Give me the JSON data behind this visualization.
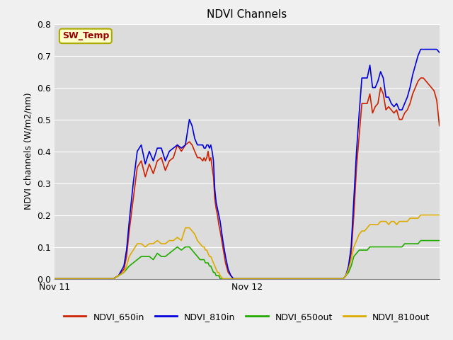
{
  "title": "NDVI Channels",
  "ylabel": "NDVI channels (W/m2/nm)",
  "ylim": [
    0.0,
    0.8
  ],
  "yticks": [
    0.0,
    0.1,
    0.2,
    0.3,
    0.4,
    0.5,
    0.6,
    0.7,
    0.8
  ],
  "bg_color": "#dcdcdc",
  "fig_bg_color": "#f0f0f0",
  "legend_entries": [
    "NDVI_650in",
    "NDVI_810in",
    "NDVI_650out",
    "NDVI_810out"
  ],
  "line_colors": [
    "#cc2200",
    "#0000dd",
    "#22aa00",
    "#ddaa00"
  ],
  "annotation_text": "SW_Temp",
  "annotation_color": "#990000",
  "annotation_bg": "#ffffcc",
  "annotation_border": "#aaaa00",
  "series": {
    "NDVI_650in": {
      "x": [
        0,
        60,
        120,
        180,
        220,
        240,
        260,
        270,
        280,
        295,
        310,
        325,
        340,
        355,
        370,
        385,
        400,
        415,
        430,
        445,
        460,
        475,
        490,
        505,
        515,
        525,
        535,
        545,
        555,
        560,
        565,
        570,
        575,
        580,
        585,
        590,
        595,
        600,
        605,
        610,
        615,
        620,
        630,
        640,
        650,
        660,
        670,
        680,
        690,
        700,
        720,
        740,
        760,
        780,
        800,
        820,
        840,
        860,
        880,
        900,
        920,
        940,
        960,
        980,
        1000,
        1020,
        1040,
        1060,
        1080,
        1090,
        1100,
        1110,
        1120,
        1130,
        1140,
        1150,
        1160,
        1170,
        1180,
        1190,
        1200,
        1210,
        1220,
        1230,
        1240,
        1250,
        1260,
        1270,
        1280,
        1290,
        1300,
        1310,
        1320,
        1330,
        1340,
        1350,
        1360,
        1370,
        1380,
        1390,
        1400,
        1410,
        1420,
        1430,
        1440
      ],
      "y": [
        0.0,
        0.0,
        0.0,
        0.0,
        0.0,
        0.01,
        0.03,
        0.07,
        0.15,
        0.25,
        0.35,
        0.37,
        0.32,
        0.36,
        0.33,
        0.37,
        0.38,
        0.34,
        0.37,
        0.38,
        0.42,
        0.4,
        0.42,
        0.43,
        0.42,
        0.4,
        0.38,
        0.38,
        0.37,
        0.38,
        0.37,
        0.38,
        0.4,
        0.37,
        0.38,
        0.35,
        0.32,
        0.25,
        0.22,
        0.2,
        0.17,
        0.15,
        0.1,
        0.05,
        0.02,
        0.01,
        0.0,
        0.0,
        0.0,
        0.0,
        0.0,
        0.0,
        0.0,
        0.0,
        0.0,
        0.0,
        0.0,
        0.0,
        0.0,
        0.0,
        0.0,
        0.0,
        0.0,
        0.0,
        0.0,
        0.0,
        0.0,
        0.0,
        0.0,
        0.01,
        0.03,
        0.08,
        0.2,
        0.35,
        0.45,
        0.55,
        0.55,
        0.55,
        0.58,
        0.52,
        0.54,
        0.55,
        0.6,
        0.58,
        0.53,
        0.54,
        0.53,
        0.52,
        0.53,
        0.5,
        0.5,
        0.52,
        0.53,
        0.55,
        0.58,
        0.6,
        0.62,
        0.63,
        0.63,
        0.62,
        0.61,
        0.6,
        0.59,
        0.56,
        0.48
      ]
    },
    "NDVI_810in": {
      "x": [
        0,
        60,
        120,
        180,
        220,
        240,
        260,
        270,
        280,
        295,
        310,
        325,
        340,
        355,
        370,
        385,
        400,
        415,
        430,
        445,
        460,
        475,
        490,
        505,
        515,
        525,
        535,
        545,
        555,
        560,
        565,
        570,
        575,
        580,
        585,
        590,
        595,
        600,
        605,
        610,
        615,
        620,
        630,
        640,
        650,
        660,
        670,
        680,
        690,
        700,
        720,
        740,
        760,
        780,
        800,
        820,
        840,
        860,
        880,
        900,
        920,
        940,
        960,
        980,
        1000,
        1020,
        1040,
        1060,
        1080,
        1090,
        1100,
        1110,
        1120,
        1130,
        1140,
        1150,
        1160,
        1170,
        1180,
        1190,
        1200,
        1210,
        1220,
        1230,
        1240,
        1250,
        1260,
        1270,
        1280,
        1290,
        1300,
        1310,
        1320,
        1330,
        1340,
        1350,
        1360,
        1370,
        1380,
        1390,
        1400,
        1410,
        1420,
        1430,
        1440
      ],
      "y": [
        0.0,
        0.0,
        0.0,
        0.0,
        0.0,
        0.01,
        0.04,
        0.09,
        0.18,
        0.3,
        0.4,
        0.42,
        0.36,
        0.4,
        0.37,
        0.41,
        0.41,
        0.37,
        0.4,
        0.41,
        0.42,
        0.41,
        0.42,
        0.5,
        0.48,
        0.44,
        0.42,
        0.42,
        0.42,
        0.41,
        0.41,
        0.42,
        0.42,
        0.41,
        0.42,
        0.4,
        0.37,
        0.28,
        0.24,
        0.22,
        0.2,
        0.18,
        0.12,
        0.07,
        0.03,
        0.01,
        0.0,
        0.0,
        0.0,
        0.0,
        0.0,
        0.0,
        0.0,
        0.0,
        0.0,
        0.0,
        0.0,
        0.0,
        0.0,
        0.0,
        0.0,
        0.0,
        0.0,
        0.0,
        0.0,
        0.0,
        0.0,
        0.0,
        0.0,
        0.01,
        0.04,
        0.1,
        0.25,
        0.4,
        0.52,
        0.63,
        0.63,
        0.63,
        0.67,
        0.6,
        0.6,
        0.62,
        0.65,
        0.63,
        0.57,
        0.57,
        0.55,
        0.54,
        0.55,
        0.53,
        0.53,
        0.55,
        0.57,
        0.6,
        0.64,
        0.67,
        0.7,
        0.72,
        0.72,
        0.72,
        0.72,
        0.72,
        0.72,
        0.72,
        0.71
      ]
    },
    "NDVI_650out": {
      "x": [
        0,
        60,
        120,
        180,
        220,
        240,
        260,
        270,
        280,
        295,
        310,
        325,
        340,
        355,
        370,
        385,
        400,
        415,
        430,
        445,
        460,
        475,
        490,
        505,
        515,
        525,
        535,
        545,
        555,
        560,
        565,
        570,
        575,
        580,
        585,
        590,
        595,
        600,
        605,
        610,
        615,
        620,
        630,
        640,
        650,
        660,
        670,
        680,
        690,
        700,
        720,
        740,
        760,
        780,
        800,
        820,
        840,
        860,
        880,
        900,
        920,
        940,
        960,
        980,
        1000,
        1020,
        1040,
        1060,
        1080,
        1090,
        1100,
        1110,
        1120,
        1130,
        1140,
        1150,
        1160,
        1170,
        1180,
        1190,
        1200,
        1210,
        1220,
        1230,
        1240,
        1250,
        1260,
        1270,
        1280,
        1290,
        1300,
        1310,
        1320,
        1330,
        1340,
        1350,
        1360,
        1370,
        1380,
        1390,
        1400,
        1410,
        1420,
        1430,
        1440
      ],
      "y": [
        0.0,
        0.0,
        0.0,
        0.0,
        0.0,
        0.01,
        0.02,
        0.03,
        0.04,
        0.05,
        0.06,
        0.07,
        0.07,
        0.07,
        0.06,
        0.08,
        0.07,
        0.07,
        0.08,
        0.09,
        0.1,
        0.09,
        0.1,
        0.1,
        0.09,
        0.08,
        0.07,
        0.06,
        0.06,
        0.06,
        0.05,
        0.05,
        0.05,
        0.04,
        0.04,
        0.03,
        0.02,
        0.02,
        0.01,
        0.01,
        0.01,
        0.0,
        0.0,
        0.0,
        0.0,
        0.0,
        0.0,
        0.0,
        0.0,
        0.0,
        0.0,
        0.0,
        0.0,
        0.0,
        0.0,
        0.0,
        0.0,
        0.0,
        0.0,
        0.0,
        0.0,
        0.0,
        0.0,
        0.0,
        0.0,
        0.0,
        0.0,
        0.0,
        0.0,
        0.01,
        0.02,
        0.04,
        0.07,
        0.08,
        0.09,
        0.09,
        0.09,
        0.09,
        0.1,
        0.1,
        0.1,
        0.1,
        0.1,
        0.1,
        0.1,
        0.1,
        0.1,
        0.1,
        0.1,
        0.1,
        0.1,
        0.11,
        0.11,
        0.11,
        0.11,
        0.11,
        0.11,
        0.12,
        0.12,
        0.12,
        0.12,
        0.12,
        0.12,
        0.12,
        0.12
      ]
    },
    "NDVI_810out": {
      "x": [
        0,
        60,
        120,
        180,
        220,
        240,
        260,
        270,
        280,
        295,
        310,
        325,
        340,
        355,
        370,
        385,
        400,
        415,
        430,
        445,
        460,
        475,
        490,
        505,
        515,
        525,
        535,
        545,
        555,
        560,
        565,
        570,
        575,
        580,
        585,
        590,
        595,
        600,
        605,
        610,
        615,
        620,
        630,
        640,
        650,
        660,
        670,
        680,
        690,
        700,
        720,
        740,
        760,
        780,
        800,
        820,
        840,
        860,
        880,
        900,
        920,
        940,
        960,
        980,
        1000,
        1020,
        1040,
        1060,
        1080,
        1090,
        1100,
        1110,
        1120,
        1130,
        1140,
        1150,
        1160,
        1170,
        1180,
        1190,
        1200,
        1210,
        1220,
        1230,
        1240,
        1250,
        1260,
        1270,
        1280,
        1290,
        1300,
        1310,
        1320,
        1330,
        1340,
        1350,
        1360,
        1370,
        1380,
        1390,
        1400,
        1410,
        1420,
        1430,
        1440
      ],
      "y": [
        0.0,
        0.0,
        0.0,
        0.0,
        0.0,
        0.01,
        0.02,
        0.04,
        0.07,
        0.09,
        0.11,
        0.11,
        0.1,
        0.11,
        0.11,
        0.12,
        0.11,
        0.11,
        0.12,
        0.12,
        0.13,
        0.12,
        0.16,
        0.16,
        0.15,
        0.14,
        0.12,
        0.11,
        0.1,
        0.1,
        0.09,
        0.09,
        0.08,
        0.07,
        0.07,
        0.06,
        0.05,
        0.04,
        0.03,
        0.02,
        0.02,
        0.01,
        0.0,
        0.0,
        0.0,
        0.0,
        0.0,
        0.0,
        0.0,
        0.0,
        0.0,
        0.0,
        0.0,
        0.0,
        0.0,
        0.0,
        0.0,
        0.0,
        0.0,
        0.0,
        0.0,
        0.0,
        0.0,
        0.0,
        0.0,
        0.0,
        0.0,
        0.0,
        0.0,
        0.01,
        0.03,
        0.06,
        0.1,
        0.12,
        0.14,
        0.15,
        0.15,
        0.16,
        0.17,
        0.17,
        0.17,
        0.17,
        0.18,
        0.18,
        0.18,
        0.17,
        0.18,
        0.18,
        0.17,
        0.18,
        0.18,
        0.18,
        0.18,
        0.19,
        0.19,
        0.19,
        0.19,
        0.2,
        0.2,
        0.2,
        0.2,
        0.2,
        0.2,
        0.2,
        0.2
      ]
    }
  }
}
